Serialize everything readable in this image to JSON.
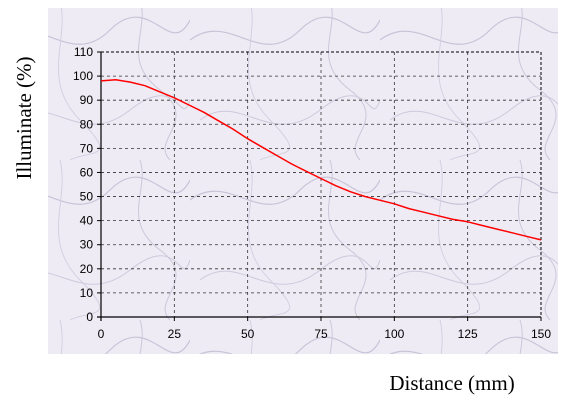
{
  "chart_data": {
    "type": "line",
    "title": "",
    "xlabel": "Distance (mm)",
    "ylabel": "Illuminate (%)",
    "xlim": [
      0,
      150
    ],
    "ylim": [
      0,
      110
    ],
    "x_ticks": [
      0,
      25,
      50,
      75,
      100,
      125,
      150
    ],
    "y_ticks": [
      0,
      10,
      20,
      30,
      40,
      50,
      60,
      70,
      80,
      90,
      100,
      110
    ],
    "grid": true,
    "legend": "none",
    "series": [
      {
        "color": "#ff0000",
        "x": [
          0,
          5,
          10,
          15,
          20,
          25,
          30,
          35,
          40,
          45,
          50,
          55,
          60,
          65,
          70,
          75,
          80,
          85,
          90,
          95,
          100,
          105,
          110,
          115,
          120,
          125,
          130,
          135,
          140,
          145,
          150
        ],
        "y": [
          98,
          98.5,
          97.5,
          96,
          93.5,
          91,
          88,
          85,
          81.5,
          78,
          74,
          70.5,
          67,
          63.5,
          60.5,
          57.5,
          54.5,
          52,
          50,
          48.5,
          47,
          45,
          43.5,
          42,
          40.5,
          39.5,
          38,
          36.5,
          35,
          33.5,
          32
        ]
      }
    ],
    "colors": {
      "plot_background": "#f1eff6",
      "outer_background": "#ece9f3",
      "grid": "#333333",
      "axis": "#000000"
    }
  }
}
